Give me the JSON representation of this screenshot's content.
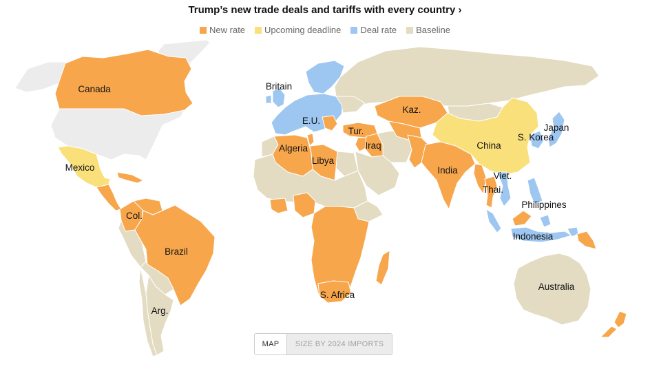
{
  "title": "Trump’s new trade deals and tariffs with every country ›",
  "legend": [
    {
      "label": "New rate",
      "color": "#f7a64c"
    },
    {
      "label": "Upcoming deadline",
      "color": "#f9e07a"
    },
    {
      "label": "Deal rate",
      "color": "#9dc6f0"
    },
    {
      "label": "Baseline",
      "color": "#e3dcc2"
    }
  ],
  "colors": {
    "new_rate": "#f7a64c",
    "upcoming": "#f9e07a",
    "deal": "#9dc6f0",
    "baseline": "#e3dcc2",
    "none": "#ececec",
    "border": "#ffffff"
  },
  "labels": {
    "canada": "Canada",
    "mexico": "Mexico",
    "colombia": "Col.",
    "brazil": "Brazil",
    "argentina": "Arg.",
    "britain": "Britain",
    "eu": "E.U.",
    "algeria": "Algeria",
    "libya": "Libya",
    "turkey": "Tur.",
    "iraq": "Iraq",
    "kazakhstan": "Kaz.",
    "india": "India",
    "china": "China",
    "south_korea": "S. Korea",
    "japan": "Japan",
    "vietnam": "Viet.",
    "thailand": "Thai.",
    "philippines": "Philippines",
    "indonesia": "Indonesia",
    "south_africa": "S. Africa",
    "australia": "Australia"
  },
  "toggle": {
    "map_label": "MAP",
    "size_label": "SIZE BY 2024 IMPORTS"
  }
}
